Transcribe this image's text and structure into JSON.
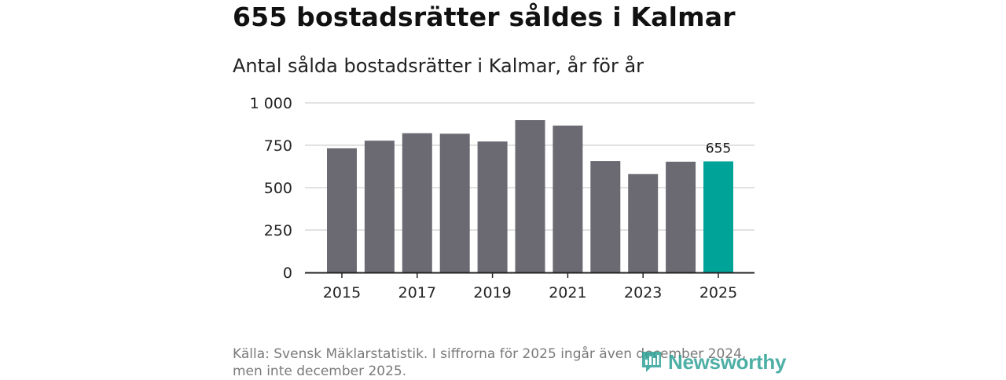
{
  "header": {
    "title": "655 bostadsrätter såldes i Kalmar",
    "subtitle": "Antal sålda bostadsrätter i Kalmar, år för år"
  },
  "chart_data": {
    "type": "bar",
    "title": "Antal sålda bostadsrätter i Kalmar, år för år",
    "xlabel": "",
    "ylabel": "",
    "categories": [
      "2015",
      "2016",
      "2017",
      "2018",
      "2019",
      "2020",
      "2021",
      "2022",
      "2023",
      "2024",
      "2025"
    ],
    "values": [
      732,
      777,
      821,
      818,
      772,
      898,
      866,
      657,
      580,
      653,
      655
    ],
    "ylim": [
      0,
      1000
    ],
    "yticks": [
      0,
      250,
      500,
      750,
      1000
    ],
    "ytick_labels": [
      "0",
      "250",
      "500",
      "750",
      "1 000"
    ],
    "xtick_labels": [
      "2015",
      "2017",
      "2019",
      "2021",
      "2023",
      "2025"
    ],
    "highlight_index": 10,
    "annotations": [
      {
        "category": "2025",
        "label": "655"
      }
    ],
    "colors": {
      "bar": "#6b6a72",
      "highlight": "#00a398",
      "grid": "#d9d9d9",
      "axis": "#222222"
    },
    "grid": true
  },
  "footer": {
    "source_line1": "Källa: Svensk Mäklarstatistik. I siffrorna för 2025 ingår även december 2024,",
    "source_line2": "men inte december 2025."
  },
  "brand": {
    "name": "Newsworthy",
    "color": "#2fa296"
  }
}
